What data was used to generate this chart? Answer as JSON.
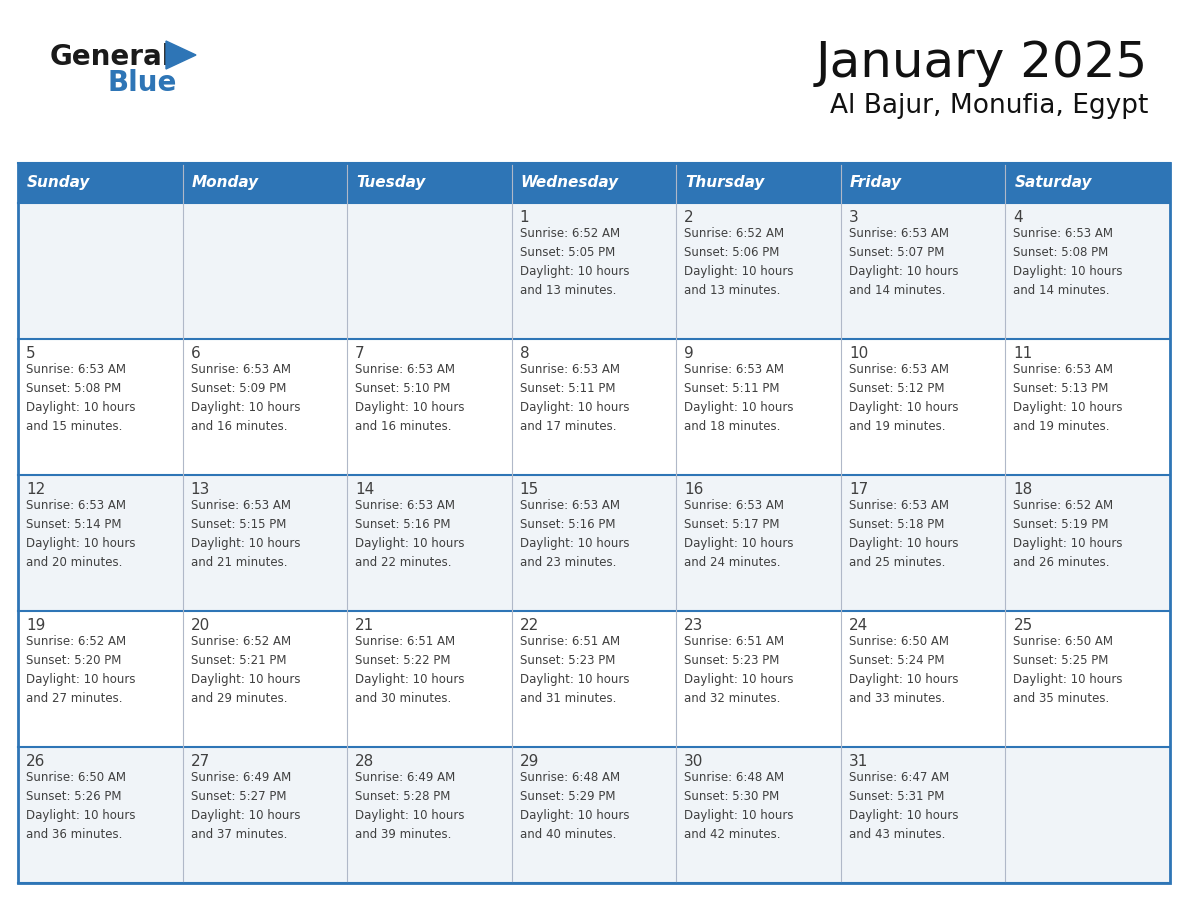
{
  "title": "January 2025",
  "subtitle": "Al Bajur, Monufia, Egypt",
  "header_color": "#2E75B6",
  "header_text_color": "#FFFFFF",
  "days_of_week": [
    "Sunday",
    "Monday",
    "Tuesday",
    "Wednesday",
    "Thursday",
    "Friday",
    "Saturday"
  ],
  "bg_color": "#FFFFFF",
  "border_color": "#2E75B6",
  "divider_color": "#2E75B6",
  "text_color": "#404040",
  "row_bg_light": "#F0F4F8",
  "row_bg_white": "#FFFFFF",
  "calendar": [
    [
      {
        "day": "",
        "info": ""
      },
      {
        "day": "",
        "info": ""
      },
      {
        "day": "",
        "info": ""
      },
      {
        "day": "1",
        "info": "Sunrise: 6:52 AM\nSunset: 5:05 PM\nDaylight: 10 hours\nand 13 minutes."
      },
      {
        "day": "2",
        "info": "Sunrise: 6:52 AM\nSunset: 5:06 PM\nDaylight: 10 hours\nand 13 minutes."
      },
      {
        "day": "3",
        "info": "Sunrise: 6:53 AM\nSunset: 5:07 PM\nDaylight: 10 hours\nand 14 minutes."
      },
      {
        "day": "4",
        "info": "Sunrise: 6:53 AM\nSunset: 5:08 PM\nDaylight: 10 hours\nand 14 minutes."
      }
    ],
    [
      {
        "day": "5",
        "info": "Sunrise: 6:53 AM\nSunset: 5:08 PM\nDaylight: 10 hours\nand 15 minutes."
      },
      {
        "day": "6",
        "info": "Sunrise: 6:53 AM\nSunset: 5:09 PM\nDaylight: 10 hours\nand 16 minutes."
      },
      {
        "day": "7",
        "info": "Sunrise: 6:53 AM\nSunset: 5:10 PM\nDaylight: 10 hours\nand 16 minutes."
      },
      {
        "day": "8",
        "info": "Sunrise: 6:53 AM\nSunset: 5:11 PM\nDaylight: 10 hours\nand 17 minutes."
      },
      {
        "day": "9",
        "info": "Sunrise: 6:53 AM\nSunset: 5:11 PM\nDaylight: 10 hours\nand 18 minutes."
      },
      {
        "day": "10",
        "info": "Sunrise: 6:53 AM\nSunset: 5:12 PM\nDaylight: 10 hours\nand 19 minutes."
      },
      {
        "day": "11",
        "info": "Sunrise: 6:53 AM\nSunset: 5:13 PM\nDaylight: 10 hours\nand 19 minutes."
      }
    ],
    [
      {
        "day": "12",
        "info": "Sunrise: 6:53 AM\nSunset: 5:14 PM\nDaylight: 10 hours\nand 20 minutes."
      },
      {
        "day": "13",
        "info": "Sunrise: 6:53 AM\nSunset: 5:15 PM\nDaylight: 10 hours\nand 21 minutes."
      },
      {
        "day": "14",
        "info": "Sunrise: 6:53 AM\nSunset: 5:16 PM\nDaylight: 10 hours\nand 22 minutes."
      },
      {
        "day": "15",
        "info": "Sunrise: 6:53 AM\nSunset: 5:16 PM\nDaylight: 10 hours\nand 23 minutes."
      },
      {
        "day": "16",
        "info": "Sunrise: 6:53 AM\nSunset: 5:17 PM\nDaylight: 10 hours\nand 24 minutes."
      },
      {
        "day": "17",
        "info": "Sunrise: 6:53 AM\nSunset: 5:18 PM\nDaylight: 10 hours\nand 25 minutes."
      },
      {
        "day": "18",
        "info": "Sunrise: 6:52 AM\nSunset: 5:19 PM\nDaylight: 10 hours\nand 26 minutes."
      }
    ],
    [
      {
        "day": "19",
        "info": "Sunrise: 6:52 AM\nSunset: 5:20 PM\nDaylight: 10 hours\nand 27 minutes."
      },
      {
        "day": "20",
        "info": "Sunrise: 6:52 AM\nSunset: 5:21 PM\nDaylight: 10 hours\nand 29 minutes."
      },
      {
        "day": "21",
        "info": "Sunrise: 6:51 AM\nSunset: 5:22 PM\nDaylight: 10 hours\nand 30 minutes."
      },
      {
        "day": "22",
        "info": "Sunrise: 6:51 AM\nSunset: 5:23 PM\nDaylight: 10 hours\nand 31 minutes."
      },
      {
        "day": "23",
        "info": "Sunrise: 6:51 AM\nSunset: 5:23 PM\nDaylight: 10 hours\nand 32 minutes."
      },
      {
        "day": "24",
        "info": "Sunrise: 6:50 AM\nSunset: 5:24 PM\nDaylight: 10 hours\nand 33 minutes."
      },
      {
        "day": "25",
        "info": "Sunrise: 6:50 AM\nSunset: 5:25 PM\nDaylight: 10 hours\nand 35 minutes."
      }
    ],
    [
      {
        "day": "26",
        "info": "Sunrise: 6:50 AM\nSunset: 5:26 PM\nDaylight: 10 hours\nand 36 minutes."
      },
      {
        "day": "27",
        "info": "Sunrise: 6:49 AM\nSunset: 5:27 PM\nDaylight: 10 hours\nand 37 minutes."
      },
      {
        "day": "28",
        "info": "Sunrise: 6:49 AM\nSunset: 5:28 PM\nDaylight: 10 hours\nand 39 minutes."
      },
      {
        "day": "29",
        "info": "Sunrise: 6:48 AM\nSunset: 5:29 PM\nDaylight: 10 hours\nand 40 minutes."
      },
      {
        "day": "30",
        "info": "Sunrise: 6:48 AM\nSunset: 5:30 PM\nDaylight: 10 hours\nand 42 minutes."
      },
      {
        "day": "31",
        "info": "Sunrise: 6:47 AM\nSunset: 5:31 PM\nDaylight: 10 hours\nand 43 minutes."
      },
      {
        "day": "",
        "info": ""
      }
    ]
  ],
  "logo_general_color": "#1a1a1a",
  "logo_blue_color": "#2E75B6",
  "header_fontsize": 11,
  "day_num_fontsize": 10,
  "info_fontsize": 8.5,
  "title_fontsize": 36,
  "subtitle_fontsize": 19
}
